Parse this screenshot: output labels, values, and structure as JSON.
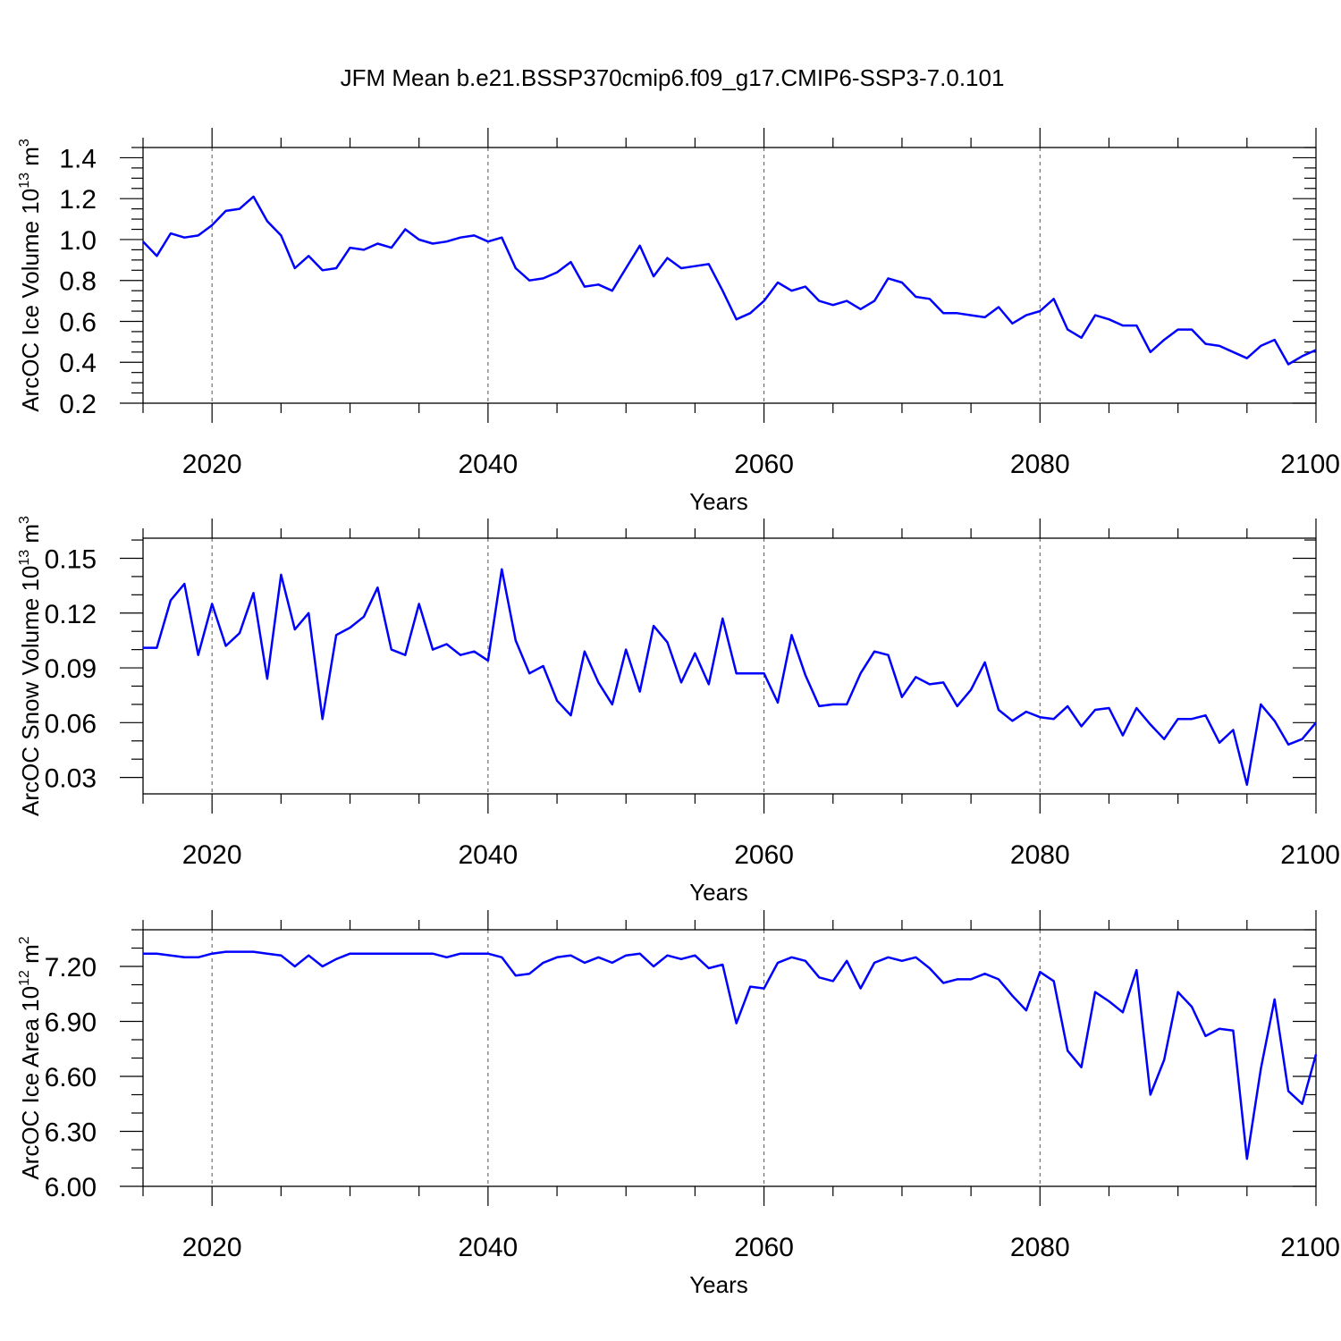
{
  "title": "JFM Mean b.e21.BSSP370cmip6.f09_g17.CMIP6-SSP3-7.0.101",
  "chart_data": [
    {
      "type": "line",
      "ylabel_main": "ArcOC Ice Volume 10",
      "ylabel_exp": "13",
      "ylabel_unit": " m",
      "ylabel_unit_exp": "3",
      "xlabel": "Years",
      "xlim": [
        2015,
        2100
      ],
      "ylim": [
        0.2,
        1.45
      ],
      "xticks": [
        2020,
        2040,
        2060,
        2080,
        2100
      ],
      "xtick_labels": [
        "2020",
        "2040",
        "2060",
        "2080",
        "2100"
      ],
      "yticks": [
        0.2,
        0.4,
        0.6,
        0.8,
        1.0,
        1.2,
        1.4
      ],
      "ytick_labels": [
        "0.2",
        "0.4",
        "0.6",
        "0.8",
        "1.0",
        "1.2",
        "1.4"
      ],
      "ymajor_step": 0.2,
      "yminor_step": 0.05,
      "x_start": 2015,
      "values": [
        0.99,
        0.92,
        1.03,
        1.01,
        1.02,
        1.07,
        1.14,
        1.15,
        1.21,
        1.09,
        1.02,
        0.86,
        0.92,
        0.85,
        0.86,
        0.96,
        0.95,
        0.98,
        0.96,
        1.05,
        1.0,
        0.98,
        0.99,
        1.01,
        1.02,
        0.99,
        1.01,
        0.86,
        0.8,
        0.81,
        0.84,
        0.89,
        0.77,
        0.78,
        0.75,
        0.86,
        0.97,
        0.82,
        0.91,
        0.86,
        0.87,
        0.88,
        0.75,
        0.61,
        0.64,
        0.7,
        0.79,
        0.75,
        0.77,
        0.7,
        0.68,
        0.7,
        0.66,
        0.7,
        0.81,
        0.79,
        0.72,
        0.71,
        0.64,
        0.64,
        0.63,
        0.62,
        0.67,
        0.59,
        0.63,
        0.65,
        0.71,
        0.56,
        0.52,
        0.63,
        0.61,
        0.58,
        0.58,
        0.45,
        0.51,
        0.56,
        0.56,
        0.49,
        0.48,
        0.45,
        0.42,
        0.48,
        0.51,
        0.39,
        0.43,
        0.46
      ]
    },
    {
      "type": "line",
      "ylabel_main": "ArcOC Snow Volume 10",
      "ylabel_exp": "13",
      "ylabel_unit": " m",
      "ylabel_unit_exp": "3",
      "xlabel": "Years",
      "xlim": [
        2015,
        2100
      ],
      "ylim": [
        0.021,
        0.161
      ],
      "xticks": [
        2020,
        2040,
        2060,
        2080,
        2100
      ],
      "xtick_labels": [
        "2020",
        "2040",
        "2060",
        "2080",
        "2100"
      ],
      "yticks": [
        0.03,
        0.06,
        0.09,
        0.12,
        0.15
      ],
      "ytick_labels": [
        "0.03",
        "0.06",
        "0.09",
        "0.12",
        "0.15"
      ],
      "ymajor_step": 0.03,
      "yminor_step": 0.01,
      "x_start": 2015,
      "values": [
        0.101,
        0.101,
        0.127,
        0.136,
        0.097,
        0.125,
        0.102,
        0.109,
        0.131,
        0.084,
        0.141,
        0.111,
        0.12,
        0.062,
        0.108,
        0.112,
        0.118,
        0.134,
        0.1,
        0.097,
        0.125,
        0.1,
        0.103,
        0.097,
        0.099,
        0.094,
        0.144,
        0.105,
        0.087,
        0.091,
        0.072,
        0.064,
        0.099,
        0.082,
        0.07,
        0.1,
        0.077,
        0.113,
        0.104,
        0.082,
        0.098,
        0.081,
        0.117,
        0.087,
        0.087,
        0.087,
        0.071,
        0.108,
        0.086,
        0.069,
        0.07,
        0.07,
        0.087,
        0.099,
        0.097,
        0.074,
        0.085,
        0.081,
        0.082,
        0.069,
        0.078,
        0.093,
        0.067,
        0.061,
        0.066,
        0.063,
        0.062,
        0.069,
        0.058,
        0.067,
        0.068,
        0.053,
        0.068,
        0.059,
        0.051,
        0.062,
        0.062,
        0.064,
        0.049,
        0.056,
        0.026,
        0.07,
        0.061,
        0.048,
        0.051,
        0.06
      ]
    },
    {
      "type": "line",
      "ylabel_main": "ArcOC Ice Area 10",
      "ylabel_exp": "12",
      "ylabel_unit": " m",
      "ylabel_unit_exp": "2",
      "xlabel": "Years",
      "xlim": [
        2015,
        2100
      ],
      "ylim": [
        6.0,
        7.4
      ],
      "xticks": [
        2020,
        2040,
        2060,
        2080,
        2100
      ],
      "xtick_labels": [
        "2020",
        "2040",
        "2060",
        "2080",
        "2100"
      ],
      "yticks": [
        6.0,
        6.3,
        6.6,
        6.9,
        7.2
      ],
      "ytick_labels": [
        "6.00",
        "6.30",
        "6.60",
        "6.90",
        "7.20"
      ],
      "ymajor_step": 0.3,
      "yminor_step": 0.1,
      "x_start": 2015,
      "values": [
        7.27,
        7.27,
        7.26,
        7.25,
        7.25,
        7.27,
        7.28,
        7.28,
        7.28,
        7.27,
        7.26,
        7.2,
        7.26,
        7.2,
        7.24,
        7.27,
        7.27,
        7.27,
        7.27,
        7.27,
        7.27,
        7.27,
        7.25,
        7.27,
        7.27,
        7.27,
        7.25,
        7.15,
        7.16,
        7.22,
        7.25,
        7.26,
        7.22,
        7.25,
        7.22,
        7.26,
        7.27,
        7.2,
        7.26,
        7.24,
        7.26,
        7.19,
        7.21,
        6.89,
        7.09,
        7.08,
        7.22,
        7.25,
        7.23,
        7.14,
        7.12,
        7.23,
        7.08,
        7.22,
        7.25,
        7.23,
        7.25,
        7.19,
        7.11,
        7.13,
        7.13,
        7.16,
        7.13,
        7.04,
        6.96,
        7.17,
        7.12,
        6.74,
        6.65,
        7.06,
        7.01,
        6.95,
        7.18,
        6.5,
        6.69,
        7.06,
        6.98,
        6.82,
        6.86,
        6.85,
        6.15,
        6.64,
        7.02,
        6.52,
        6.45,
        6.72
      ]
    }
  ]
}
